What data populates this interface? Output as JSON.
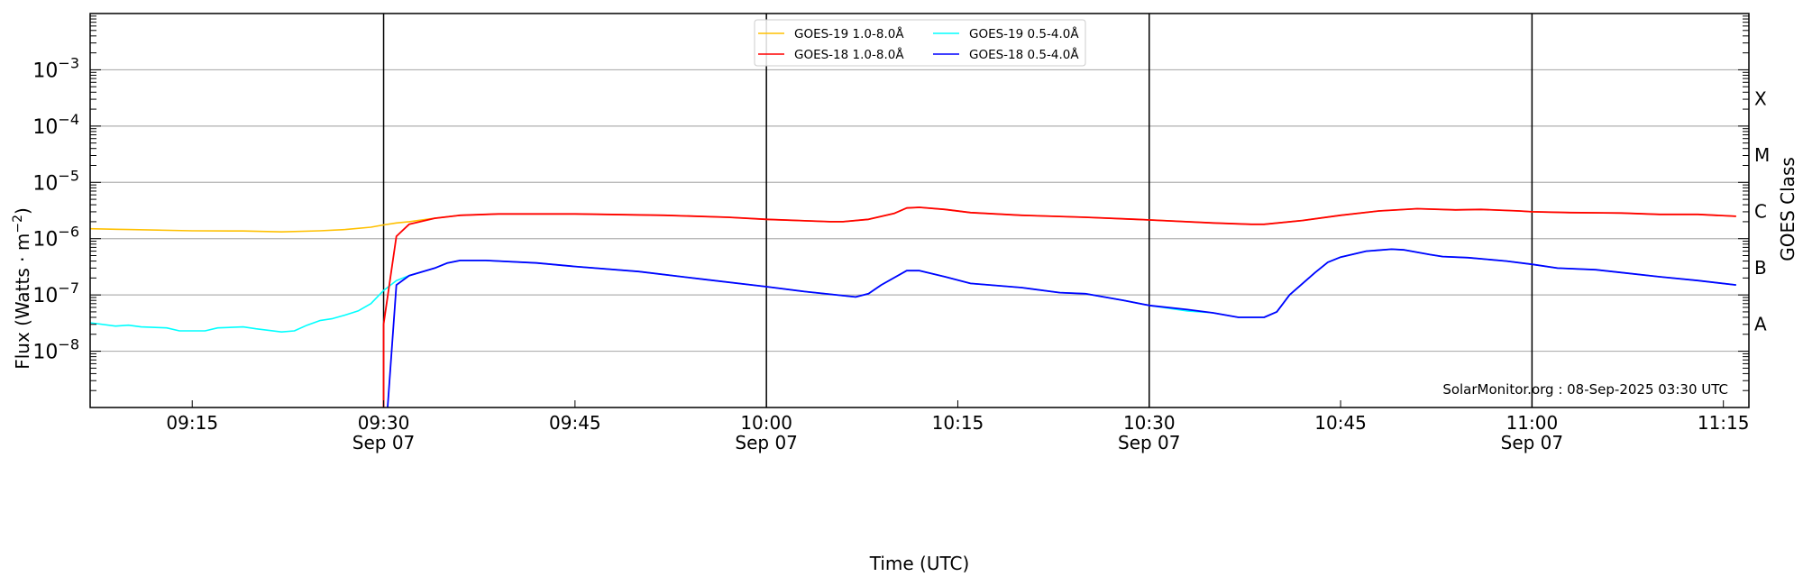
{
  "chart_data": {
    "type": "line",
    "xlabel": "Time (UTC)",
    "ylabel": "Flux (Watts · m",
    "ylabel_sup": "−2",
    "ylabel_close": ")",
    "right_label": "GOES Class",
    "y_scale": "log",
    "ylim": [
      1e-09,
      0.01
    ],
    "xlim": [
      "09:07",
      "11:17"
    ],
    "grid": "horizontal at decades",
    "legend_position": "top-center",
    "watermark": "SolarMonitor.org : 08-Sep-2025 03:30 UTC",
    "y_ticks": [
      {
        "exp": -8,
        "base": "10",
        "sup": "−8"
      },
      {
        "exp": -7,
        "base": "10",
        "sup": "−7"
      },
      {
        "exp": -6,
        "base": "10",
        "sup": "−6"
      },
      {
        "exp": -5,
        "base": "10",
        "sup": "−5"
      },
      {
        "exp": -4,
        "base": "10",
        "sup": "−4"
      },
      {
        "exp": -3,
        "base": "10",
        "sup": "−3"
      }
    ],
    "x_ticks": [
      {
        "time": "09:15",
        "label": "09:15",
        "date": ""
      },
      {
        "time": "09:30",
        "label": "09:30",
        "date": "Sep 07"
      },
      {
        "time": "09:45",
        "label": "09:45",
        "date": ""
      },
      {
        "time": "10:00",
        "label": "10:00",
        "date": "Sep 07"
      },
      {
        "time": "10:15",
        "label": "10:15",
        "date": ""
      },
      {
        "time": "10:30",
        "label": "10:30",
        "date": "Sep 07"
      },
      {
        "time": "10:45",
        "label": "10:45",
        "date": ""
      },
      {
        "time": "11:00",
        "label": "11:00",
        "date": "Sep 07"
      },
      {
        "time": "11:15",
        "label": "11:15",
        "date": ""
      }
    ],
    "vertical_lines": [
      "09:30",
      "10:00",
      "10:30",
      "11:00"
    ],
    "goes_classes": [
      {
        "label": "A",
        "exp": -7.5
      },
      {
        "label": "B",
        "exp": -6.5
      },
      {
        "label": "C",
        "exp": -5.5
      },
      {
        "label": "M",
        "exp": -4.5
      },
      {
        "label": "X",
        "exp": -3.5
      }
    ],
    "series": [
      {
        "name": "GOES-19 1.0-8.0Å",
        "color": "#ffc000",
        "points": [
          [
            "09:07",
            1.5e-06
          ],
          [
            "09:10",
            1.45e-06
          ],
          [
            "09:15",
            1.38e-06
          ],
          [
            "09:19",
            1.37e-06
          ],
          [
            "09:22",
            1.32e-06
          ],
          [
            "09:25",
            1.38e-06
          ],
          [
            "09:27",
            1.45e-06
          ],
          [
            "09:29",
            1.6e-06
          ],
          [
            "09:30",
            1.75e-06
          ],
          [
            "09:31",
            1.9e-06
          ],
          [
            "09:32",
            2e-06
          ],
          [
            "09:34",
            2.3e-06
          ],
          [
            "09:36",
            2.6e-06
          ],
          [
            "09:39",
            2.75e-06
          ],
          [
            "09:45",
            2.75e-06
          ],
          [
            "09:52",
            2.6e-06
          ],
          [
            "09:57",
            2.4e-06
          ],
          [
            "10:00",
            2.2e-06
          ],
          [
            "10:05",
            2e-06
          ],
          [
            "10:06",
            2e-06
          ],
          [
            "10:08",
            2.2e-06
          ],
          [
            "10:10",
            2.8e-06
          ],
          [
            "10:11",
            3.5e-06
          ],
          [
            "10:12",
            3.6e-06
          ],
          [
            "10:14",
            3.3e-06
          ],
          [
            "10:16",
            2.9e-06
          ],
          [
            "10:20",
            2.6e-06
          ],
          [
            "10:25",
            2.4e-06
          ],
          [
            "10:29",
            2.2e-06
          ],
          [
            "10:31",
            2.1e-06
          ],
          [
            "10:35",
            1.9e-06
          ],
          [
            "10:38",
            1.8e-06
          ],
          [
            "10:39",
            1.8e-06
          ],
          [
            "10:42",
            2.1e-06
          ],
          [
            "10:45",
            2.6e-06
          ],
          [
            "10:48",
            3.1e-06
          ],
          [
            "10:51",
            3.4e-06
          ],
          [
            "10:54",
            3.25e-06
          ],
          [
            "10:56",
            3.3e-06
          ],
          [
            "10:59",
            3.1e-06
          ],
          [
            "11:00",
            3e-06
          ],
          [
            "11:03",
            2.9e-06
          ],
          [
            "11:07",
            2.85e-06
          ],
          [
            "11:10",
            2.7e-06
          ],
          [
            "11:13",
            2.7e-06
          ],
          [
            "11:16",
            2.5e-06
          ]
        ]
      },
      {
        "name": "GOES-19 0.5-4.0Å",
        "color": "#00ffff",
        "points": [
          [
            "09:07",
            3.2e-08
          ],
          [
            "09:09",
            2.8e-08
          ],
          [
            "09:10",
            2.9e-08
          ],
          [
            "09:11",
            2.7e-08
          ],
          [
            "09:13",
            2.6e-08
          ],
          [
            "09:14",
            2.3e-08
          ],
          [
            "09:16",
            2.3e-08
          ],
          [
            "09:17",
            2.6e-08
          ],
          [
            "09:19",
            2.7e-08
          ],
          [
            "09:20",
            2.5e-08
          ],
          [
            "09:22",
            2.2e-08
          ],
          [
            "09:23",
            2.3e-08
          ],
          [
            "09:24",
            2.9e-08
          ],
          [
            "09:25",
            3.5e-08
          ],
          [
            "09:26",
            3.8e-08
          ],
          [
            "09:27",
            4.4e-08
          ],
          [
            "09:28",
            5.2e-08
          ],
          [
            "09:29",
            7e-08
          ],
          [
            "09:30",
            1.2e-07
          ],
          [
            "09:31",
            1.8e-07
          ],
          [
            "09:32",
            2.2e-07
          ],
          [
            "09:34",
            3e-07
          ],
          [
            "09:35",
            3.7e-07
          ],
          [
            "09:36",
            4.1e-07
          ],
          [
            "09:38",
            4.1e-07
          ],
          [
            "09:42",
            3.7e-07
          ],
          [
            "09:45",
            3.2e-07
          ],
          [
            "09:50",
            2.6e-07
          ],
          [
            "09:55",
            1.9e-07
          ],
          [
            "10:00",
            1.4e-07
          ],
          [
            "10:03",
            1.15e-07
          ],
          [
            "10:07",
            9.2e-08
          ],
          [
            "10:08",
            1.05e-07
          ],
          [
            "10:09",
            1.5e-07
          ],
          [
            "10:11",
            2.7e-07
          ],
          [
            "10:12",
            2.7e-07
          ],
          [
            "10:14",
            2.1e-07
          ],
          [
            "10:16",
            1.6e-07
          ],
          [
            "10:20",
            1.35e-07
          ],
          [
            "10:23",
            1.1e-07
          ],
          [
            "10:25",
            1.05e-07
          ],
          [
            "10:28",
            8e-08
          ],
          [
            "10:30",
            6.5e-08
          ],
          [
            "10:33",
            5.2e-08
          ],
          [
            "10:35",
            4.8e-08
          ],
          [
            "10:37",
            4e-08
          ],
          [
            "10:39",
            4e-08
          ],
          [
            "10:40",
            5e-08
          ],
          [
            "10:41",
            1e-07
          ],
          [
            "10:43",
            2.5e-07
          ],
          [
            "10:44",
            3.8e-07
          ],
          [
            "10:45",
            4.7e-07
          ],
          [
            "10:47",
            6e-07
          ],
          [
            "10:49",
            6.5e-07
          ],
          [
            "10:50",
            6.3e-07
          ],
          [
            "10:52",
            5.2e-07
          ],
          [
            "10:53",
            4.8e-07
          ],
          [
            "10:55",
            4.6e-07
          ],
          [
            "10:58",
            4e-07
          ],
          [
            "11:00",
            3.5e-07
          ],
          [
            "11:02",
            3e-07
          ],
          [
            "11:05",
            2.8e-07
          ],
          [
            "11:07",
            2.5e-07
          ],
          [
            "11:10",
            2.1e-07
          ],
          [
            "11:13",
            1.8e-07
          ],
          [
            "11:16",
            1.5e-07
          ]
        ]
      },
      {
        "name": "GOES-18 1.0-8.0Å",
        "color": "#ff0000",
        "points": [
          [
            "09:30",
            1e-10
          ],
          [
            "09:30",
            3e-08
          ],
          [
            "09:31",
            1.1e-06
          ],
          [
            "09:32",
            1.8e-06
          ],
          [
            "09:34",
            2.3e-06
          ],
          [
            "09:36",
            2.6e-06
          ],
          [
            "09:39",
            2.75e-06
          ],
          [
            "09:45",
            2.75e-06
          ],
          [
            "09:52",
            2.6e-06
          ],
          [
            "09:57",
            2.4e-06
          ],
          [
            "10:00",
            2.2e-06
          ],
          [
            "10:05",
            2e-06
          ],
          [
            "10:06",
            2e-06
          ],
          [
            "10:08",
            2.2e-06
          ],
          [
            "10:10",
            2.8e-06
          ],
          [
            "10:11",
            3.5e-06
          ],
          [
            "10:12",
            3.6e-06
          ],
          [
            "10:14",
            3.3e-06
          ],
          [
            "10:16",
            2.9e-06
          ],
          [
            "10:20",
            2.6e-06
          ],
          [
            "10:25",
            2.4e-06
          ],
          [
            "10:29",
            2.2e-06
          ],
          [
            "10:31",
            2.1e-06
          ],
          [
            "10:35",
            1.9e-06
          ],
          [
            "10:38",
            1.8e-06
          ],
          [
            "10:39",
            1.8e-06
          ],
          [
            "10:42",
            2.1e-06
          ],
          [
            "10:45",
            2.6e-06
          ],
          [
            "10:48",
            3.1e-06
          ],
          [
            "10:51",
            3.4e-06
          ],
          [
            "10:54",
            3.25e-06
          ],
          [
            "10:56",
            3.3e-06
          ],
          [
            "10:59",
            3.1e-06
          ],
          [
            "11:00",
            3e-06
          ],
          [
            "11:03",
            2.9e-06
          ],
          [
            "11:07",
            2.85e-06
          ],
          [
            "11:10",
            2.7e-06
          ],
          [
            "11:13",
            2.7e-06
          ],
          [
            "11:16",
            2.5e-06
          ]
        ]
      },
      {
        "name": "GOES-18 0.5-4.0Å",
        "color": "#0000ff",
        "points": [
          [
            "09:30",
            1e-10
          ],
          [
            "09:31",
            1.5e-07
          ],
          [
            "09:32",
            2.2e-07
          ],
          [
            "09:34",
            3e-07
          ],
          [
            "09:35",
            3.7e-07
          ],
          [
            "09:36",
            4.1e-07
          ],
          [
            "09:38",
            4.1e-07
          ],
          [
            "09:42",
            3.7e-07
          ],
          [
            "09:45",
            3.2e-07
          ],
          [
            "09:50",
            2.6e-07
          ],
          [
            "09:55",
            1.9e-07
          ],
          [
            "10:00",
            1.4e-07
          ],
          [
            "10:03",
            1.15e-07
          ],
          [
            "10:07",
            9.2e-08
          ],
          [
            "10:08",
            1.05e-07
          ],
          [
            "10:09",
            1.5e-07
          ],
          [
            "10:11",
            2.7e-07
          ],
          [
            "10:12",
            2.7e-07
          ],
          [
            "10:14",
            2.1e-07
          ],
          [
            "10:16",
            1.6e-07
          ],
          [
            "10:20",
            1.35e-07
          ],
          [
            "10:23",
            1.1e-07
          ],
          [
            "10:25",
            1.05e-07
          ],
          [
            "10:28",
            8e-08
          ],
          [
            "10:30",
            6.5e-08
          ],
          [
            "10:33",
            5.5e-08
          ],
          [
            "10:35",
            4.8e-08
          ],
          [
            "10:37",
            4e-08
          ],
          [
            "10:39",
            4e-08
          ],
          [
            "10:40",
            5e-08
          ],
          [
            "10:41",
            1e-07
          ],
          [
            "10:43",
            2.5e-07
          ],
          [
            "10:44",
            3.8e-07
          ],
          [
            "10:45",
            4.7e-07
          ],
          [
            "10:47",
            6e-07
          ],
          [
            "10:49",
            6.5e-07
          ],
          [
            "10:50",
            6.3e-07
          ],
          [
            "10:52",
            5.2e-07
          ],
          [
            "10:53",
            4.8e-07
          ],
          [
            "10:55",
            4.6e-07
          ],
          [
            "10:58",
            4e-07
          ],
          [
            "11:00",
            3.5e-07
          ],
          [
            "11:02",
            3e-07
          ],
          [
            "11:05",
            2.8e-07
          ],
          [
            "11:07",
            2.5e-07
          ],
          [
            "11:10",
            2.1e-07
          ],
          [
            "11:13",
            1.8e-07
          ],
          [
            "11:16",
            1.5e-07
          ]
        ]
      }
    ],
    "legend_order": [
      0,
      1,
      2,
      3
    ]
  }
}
